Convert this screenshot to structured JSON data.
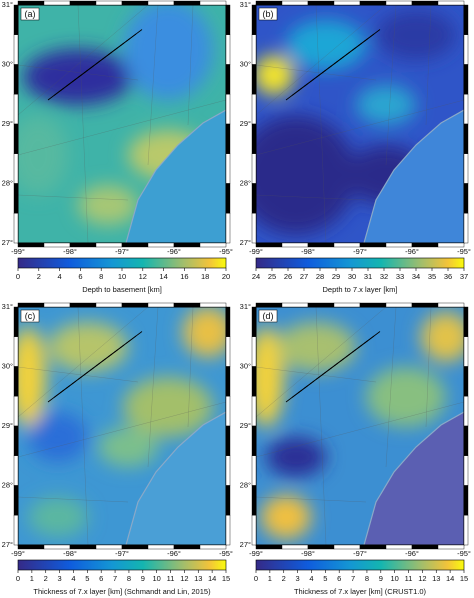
{
  "lon_ticks": [
    "-99°",
    "-98°",
    "-97°",
    "-96°",
    "-95°"
  ],
  "lat_ticks": [
    "27°",
    "28°",
    "29°",
    "30°",
    "31°"
  ],
  "panels": [
    {
      "label": "(a)",
      "colorbar_ticks": [
        0,
        2,
        4,
        6,
        8,
        10,
        12,
        14,
        16,
        18,
        20
      ],
      "colorbar_label": "Depth to basement [km]"
    },
    {
      "label": "(b)",
      "colorbar_ticks": [
        24,
        25,
        26,
        27,
        28,
        29,
        30,
        31,
        32,
        33,
        34,
        35,
        36,
        37
      ],
      "colorbar_label": "Depth to 7.x layer [km]"
    },
    {
      "label": "(c)",
      "colorbar_ticks": [
        0,
        1,
        2,
        3,
        4,
        5,
        6,
        7,
        8,
        9,
        10,
        11,
        12,
        13,
        14,
        15
      ],
      "colorbar_label": "Thickness of 7.x layer [km] (Schmandt and Lin, 2015)"
    },
    {
      "label": "(d)",
      "colorbar_ticks": [
        0,
        1,
        2,
        3,
        4,
        5,
        6,
        7,
        8,
        9,
        10,
        11,
        12,
        13,
        14,
        15
      ],
      "colorbar_label": "Thickness of 7.x layer [km] (CRUST1.0)"
    }
  ]
}
